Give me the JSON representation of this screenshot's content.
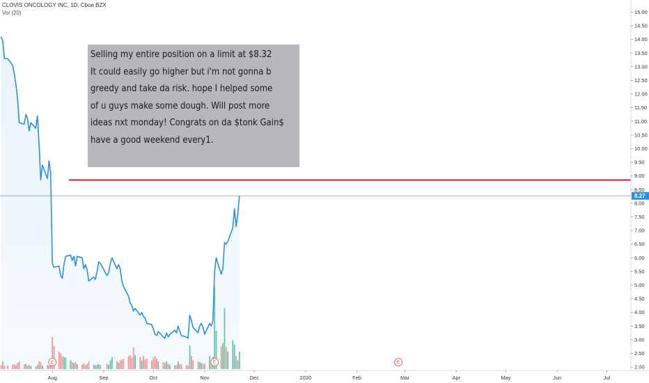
{
  "header": {
    "title": "CLOVIS ONCOLOGY INC, 1D, Cboe BZX",
    "volume_label": "Vol (20)"
  },
  "note": {
    "lines": [
      "Selling my entire position on a limit at $8.32",
      "It could easily go higher but i'm not gonna b",
      "greedy and take da risk. hope I helped some",
      "of u guys make some dough. Will post more",
      "ideas nxt monday!  Congrats on da $tonk Gain$",
      "have a good weekend every1."
    ]
  },
  "chart_data": {
    "type": "line",
    "y_ticks": [
      "2.00",
      "2.50",
      "3.00",
      "3.50",
      "4.00",
      "4.50",
      "5.00",
      "5.50",
      "6.00",
      "6.50",
      "7.00",
      "7.50",
      "8.00",
      "8.50",
      "9.00",
      "9.50",
      "10.00",
      "10.50",
      "11.00",
      "11.50",
      "12.00",
      "12.50",
      "13.00",
      "13.50",
      "14.00",
      "14.50",
      "15.00"
    ],
    "ylim": [
      2.0,
      15.0
    ],
    "x_ticks": [
      "Aug",
      "Sep",
      "Oct",
      "Nov",
      "Dec",
      "2020",
      "Feb",
      "Mar",
      "Apr",
      "May",
      "Jun",
      "Jul"
    ],
    "x_tick_dates": [
      "2019-08-01",
      "2019-09-01",
      "2019-10-01",
      "2019-11-01",
      "2019-12-01",
      "2020-01-01",
      "2020-02-01",
      "2020-03-01",
      "2020-04-01",
      "2020-05-01",
      "2020-06-01",
      "2020-07-01"
    ],
    "last_price_label": "8.27",
    "last_price": 8.27,
    "limit_line": {
      "price": 8.85,
      "color": "#e01b1b",
      "from": "2019-08-11"
    },
    "earnings_markers": [
      {
        "label": "E",
        "date": "2019-08-01"
      },
      {
        "label": "E",
        "date": "2019-11-07"
      },
      {
        "label": "E",
        "date": "2020-02-26"
      }
    ],
    "series": [
      {
        "color": "#2c8fdc",
        "points": [
          [
            "2019-07-01",
            14.1
          ],
          [
            "2019-07-02",
            13.95
          ],
          [
            "2019-07-03",
            13.3
          ],
          [
            "2019-07-05",
            13.3
          ],
          [
            "2019-07-08",
            13.05
          ],
          [
            "2019-07-09",
            12.75
          ],
          [
            "2019-07-10",
            12.35
          ],
          [
            "2019-07-11",
            11.8
          ],
          [
            "2019-07-12",
            10.95
          ],
          [
            "2019-07-15",
            10.9
          ],
          [
            "2019-07-16",
            11.25
          ],
          [
            "2019-07-17",
            11.1
          ],
          [
            "2019-07-18",
            10.65
          ],
          [
            "2019-07-19",
            10.95
          ],
          [
            "2019-07-22",
            10.75
          ],
          [
            "2019-07-23",
            11.2
          ],
          [
            "2019-07-24",
            10.1
          ],
          [
            "2019-07-25",
            8.85
          ],
          [
            "2019-07-26",
            9.4
          ],
          [
            "2019-07-29",
            8.9
          ],
          [
            "2019-07-30",
            9.55
          ],
          [
            "2019-07-31",
            9.1
          ],
          [
            "2019-08-01",
            5.8
          ],
          [
            "2019-08-02",
            5.65
          ],
          [
            "2019-08-05",
            5.7
          ],
          [
            "2019-08-06",
            5.35
          ],
          [
            "2019-08-07",
            5.25
          ],
          [
            "2019-08-08",
            5.75
          ],
          [
            "2019-08-09",
            6.05
          ],
          [
            "2019-08-12",
            6.1
          ],
          [
            "2019-08-13",
            5.9
          ],
          [
            "2019-08-14",
            6.05
          ],
          [
            "2019-08-15",
            5.7
          ],
          [
            "2019-08-16",
            6.05
          ],
          [
            "2019-08-19",
            6.0
          ],
          [
            "2019-08-20",
            5.6
          ],
          [
            "2019-08-21",
            5.75
          ],
          [
            "2019-08-22",
            5.55
          ],
          [
            "2019-08-23",
            5.15
          ],
          [
            "2019-08-26",
            5.3
          ],
          [
            "2019-08-27",
            5.2
          ],
          [
            "2019-08-28",
            5.5
          ],
          [
            "2019-08-29",
            5.85
          ],
          [
            "2019-08-30",
            5.8
          ],
          [
            "2019-09-03",
            5.35
          ],
          [
            "2019-09-04",
            5.45
          ],
          [
            "2019-09-05",
            5.8
          ],
          [
            "2019-09-06",
            6.0
          ],
          [
            "2019-09-09",
            5.6
          ],
          [
            "2019-09-10",
            5.75
          ],
          [
            "2019-09-11",
            5.6
          ],
          [
            "2019-09-12",
            5.15
          ],
          [
            "2019-09-13",
            4.95
          ],
          [
            "2019-09-16",
            4.6
          ],
          [
            "2019-09-17",
            4.35
          ],
          [
            "2019-09-18",
            4.25
          ],
          [
            "2019-09-19",
            4.05
          ],
          [
            "2019-09-20",
            4.15
          ],
          [
            "2019-09-23",
            3.9
          ],
          [
            "2019-09-24",
            4.0
          ],
          [
            "2019-09-25",
            3.85
          ],
          [
            "2019-09-26",
            3.8
          ],
          [
            "2019-09-27",
            3.6
          ],
          [
            "2019-09-30",
            3.55
          ],
          [
            "2019-10-01",
            3.4
          ],
          [
            "2019-10-02",
            3.2
          ],
          [
            "2019-10-03",
            3.15
          ],
          [
            "2019-10-04",
            3.3
          ],
          [
            "2019-10-07",
            3.1
          ],
          [
            "2019-10-08",
            3.05
          ],
          [
            "2019-10-09",
            3.25
          ],
          [
            "2019-10-10",
            3.1
          ],
          [
            "2019-10-11",
            3.2
          ],
          [
            "2019-10-14",
            3.35
          ],
          [
            "2019-10-15",
            3.25
          ],
          [
            "2019-10-16",
            3.5
          ],
          [
            "2019-10-17",
            3.3
          ],
          [
            "2019-10-18",
            3.15
          ],
          [
            "2019-10-21",
            3.1
          ],
          [
            "2019-10-22",
            3.05
          ],
          [
            "2019-10-23",
            3.9
          ],
          [
            "2019-10-24",
            3.7
          ],
          [
            "2019-10-25",
            3.45
          ],
          [
            "2019-10-28",
            3.25
          ],
          [
            "2019-10-29",
            3.5
          ],
          [
            "2019-10-30",
            3.6
          ],
          [
            "2019-10-31",
            3.45
          ],
          [
            "2019-11-01",
            3.2
          ],
          [
            "2019-11-04",
            3.6
          ],
          [
            "2019-11-05",
            3.5
          ],
          [
            "2019-11-06",
            3.7
          ],
          [
            "2019-11-07",
            5.5
          ],
          [
            "2019-11-08",
            6.0
          ],
          [
            "2019-11-11",
            5.4
          ],
          [
            "2019-11-12",
            5.6
          ],
          [
            "2019-11-13",
            6.55
          ],
          [
            "2019-11-14",
            6.5
          ],
          [
            "2019-11-15",
            6.6
          ],
          [
            "2019-11-18",
            7.1
          ],
          [
            "2019-11-19",
            7.8
          ],
          [
            "2019-11-20",
            7.15
          ],
          [
            "2019-11-21",
            7.6
          ],
          [
            "2019-11-22",
            8.27
          ]
        ]
      }
    ],
    "volume": {
      "unit": "millions",
      "ylim": [
        0,
        10
      ],
      "bars": [
        [
          "2019-07-01",
          0.45,
          "down"
        ],
        [
          "2019-07-02",
          0.9,
          "down"
        ],
        [
          "2019-07-03",
          0.35,
          "down"
        ],
        [
          "2019-07-05",
          0.4,
          "down"
        ],
        [
          "2019-07-08",
          0.5,
          "down"
        ],
        [
          "2019-07-09",
          0.55,
          "down"
        ],
        [
          "2019-07-10",
          0.45,
          "down"
        ],
        [
          "2019-07-11",
          0.7,
          "down"
        ],
        [
          "2019-07-12",
          0.9,
          "down"
        ],
        [
          "2019-07-15",
          0.55,
          "down"
        ],
        [
          "2019-07-16",
          0.6,
          "up"
        ],
        [
          "2019-07-17",
          0.4,
          "down"
        ],
        [
          "2019-07-18",
          0.5,
          "down"
        ],
        [
          "2019-07-19",
          0.35,
          "up"
        ],
        [
          "2019-07-22",
          0.3,
          "down"
        ],
        [
          "2019-07-23",
          0.45,
          "up"
        ],
        [
          "2019-07-24",
          0.9,
          "down"
        ],
        [
          "2019-07-25",
          0.8,
          "down"
        ],
        [
          "2019-07-26",
          0.4,
          "up"
        ],
        [
          "2019-07-29",
          0.45,
          "down"
        ],
        [
          "2019-07-30",
          0.4,
          "up"
        ],
        [
          "2019-07-31",
          0.55,
          "down"
        ],
        [
          "2019-08-01",
          3.7,
          "down"
        ],
        [
          "2019-08-02",
          2.6,
          "down"
        ],
        [
          "2019-08-05",
          2.0,
          "down"
        ],
        [
          "2019-08-06",
          1.8,
          "down"
        ],
        [
          "2019-08-07",
          1.5,
          "down"
        ],
        [
          "2019-08-08",
          1.4,
          "up"
        ],
        [
          "2019-08-09",
          1.3,
          "up"
        ],
        [
          "2019-08-12",
          1.0,
          "up"
        ],
        [
          "2019-08-13",
          0.8,
          "down"
        ],
        [
          "2019-08-14",
          0.7,
          "up"
        ],
        [
          "2019-08-15",
          0.8,
          "down"
        ],
        [
          "2019-08-16",
          0.55,
          "up"
        ],
        [
          "2019-08-19",
          0.5,
          "down"
        ],
        [
          "2019-08-20",
          0.7,
          "down"
        ],
        [
          "2019-08-21",
          0.45,
          "up"
        ],
        [
          "2019-08-22",
          0.6,
          "down"
        ],
        [
          "2019-08-23",
          0.9,
          "down"
        ],
        [
          "2019-08-26",
          0.5,
          "up"
        ],
        [
          "2019-08-27",
          0.45,
          "down"
        ],
        [
          "2019-08-28",
          0.5,
          "up"
        ],
        [
          "2019-08-29",
          0.55,
          "up"
        ],
        [
          "2019-08-30",
          0.45,
          "down"
        ],
        [
          "2019-09-03",
          0.6,
          "down"
        ],
        [
          "2019-09-04",
          0.5,
          "up"
        ],
        [
          "2019-09-05",
          1.0,
          "up"
        ],
        [
          "2019-09-06",
          1.4,
          "up"
        ],
        [
          "2019-09-09",
          0.9,
          "down"
        ],
        [
          "2019-09-10",
          0.7,
          "up"
        ],
        [
          "2019-09-11",
          1.0,
          "down"
        ],
        [
          "2019-09-12",
          1.1,
          "down"
        ],
        [
          "2019-09-13",
          1.2,
          "down"
        ],
        [
          "2019-09-16",
          1.5,
          "down"
        ],
        [
          "2019-09-17",
          1.6,
          "down"
        ],
        [
          "2019-09-18",
          1.3,
          "down"
        ],
        [
          "2019-09-19",
          2.5,
          "down"
        ],
        [
          "2019-09-20",
          1.6,
          "up"
        ],
        [
          "2019-09-23",
          1.4,
          "down"
        ],
        [
          "2019-09-24",
          1.0,
          "up"
        ],
        [
          "2019-09-25",
          1.5,
          "down"
        ],
        [
          "2019-09-26",
          1.1,
          "down"
        ],
        [
          "2019-09-27",
          1.2,
          "down"
        ],
        [
          "2019-09-30",
          1.0,
          "down"
        ],
        [
          "2019-10-01",
          1.3,
          "down"
        ],
        [
          "2019-10-02",
          1.5,
          "down"
        ],
        [
          "2019-10-03",
          1.2,
          "down"
        ],
        [
          "2019-10-04",
          0.9,
          "up"
        ],
        [
          "2019-10-07",
          0.8,
          "down"
        ],
        [
          "2019-10-08",
          0.7,
          "down"
        ],
        [
          "2019-10-09",
          0.9,
          "up"
        ],
        [
          "2019-10-10",
          0.6,
          "down"
        ],
        [
          "2019-10-11",
          0.5,
          "up"
        ],
        [
          "2019-10-14",
          0.4,
          "up"
        ],
        [
          "2019-10-15",
          0.45,
          "down"
        ],
        [
          "2019-10-16",
          0.9,
          "up"
        ],
        [
          "2019-10-17",
          0.6,
          "down"
        ],
        [
          "2019-10-18",
          0.5,
          "down"
        ],
        [
          "2019-10-21",
          0.45,
          "down"
        ],
        [
          "2019-10-22",
          0.4,
          "down"
        ],
        [
          "2019-10-23",
          2.7,
          "up"
        ],
        [
          "2019-10-24",
          1.5,
          "down"
        ],
        [
          "2019-10-25",
          1.0,
          "down"
        ],
        [
          "2019-10-28",
          0.9,
          "down"
        ],
        [
          "2019-10-29",
          0.8,
          "up"
        ],
        [
          "2019-10-30",
          0.7,
          "up"
        ],
        [
          "2019-10-31",
          0.6,
          "down"
        ],
        [
          "2019-11-01",
          0.6,
          "down"
        ],
        [
          "2019-11-04",
          1.5,
          "up"
        ],
        [
          "2019-11-05",
          1.0,
          "down"
        ],
        [
          "2019-11-06",
          1.4,
          "up"
        ],
        [
          "2019-11-07",
          9.5,
          "up"
        ],
        [
          "2019-11-08",
          4.4,
          "up"
        ],
        [
          "2019-11-11",
          2.6,
          "down"
        ],
        [
          "2019-11-12",
          3.0,
          "up"
        ],
        [
          "2019-11-13",
          7.0,
          "up"
        ],
        [
          "2019-11-14",
          2.5,
          "down"
        ],
        [
          "2019-11-15",
          2.0,
          "up"
        ],
        [
          "2019-11-18",
          3.3,
          "up"
        ],
        [
          "2019-11-19",
          2.8,
          "up"
        ],
        [
          "2019-11-20",
          1.5,
          "down"
        ],
        [
          "2019-11-21",
          1.0,
          "up"
        ],
        [
          "2019-11-22",
          2.0,
          "up"
        ]
      ]
    }
  }
}
